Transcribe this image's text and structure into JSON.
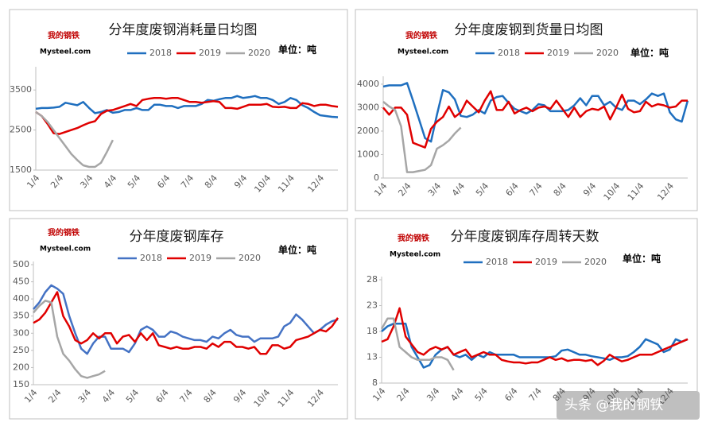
{
  "logo": {
    "cn": "我的钢铁",
    "en": "Mysteel.com"
  },
  "watermark": "头条 @我的钢铁",
  "chart_data": [
    {
      "type": "line",
      "title": "分年度废钢消耗量日均图",
      "unit": "单位：吨",
      "categories": [
        "1/4",
        null,
        null,
        null,
        "2/4",
        null,
        null,
        null,
        null,
        "3/4",
        null,
        null,
        null,
        "4/4",
        null,
        null,
        null,
        "5/4",
        null,
        null,
        null,
        null,
        "6/4",
        null,
        null,
        null,
        "7/4",
        null,
        null,
        null,
        "8/4",
        null,
        null,
        null,
        null,
        "9/4",
        null,
        null,
        null,
        "10/4",
        null,
        null,
        null,
        "11/4",
        null,
        null,
        null,
        null,
        "12/4",
        null,
        null,
        null
      ],
      "ylim": [
        1500,
        4000
      ],
      "yticks": [
        1500,
        2500,
        3500
      ],
      "series": [
        {
          "name": "2018",
          "color": "#1f6fbf",
          "values": [
            3030,
            3050,
            3050,
            3060,
            3080,
            3180,
            3150,
            3120,
            3200,
            3050,
            2920,
            2950,
            3000,
            2930,
            2950,
            3000,
            3000,
            3050,
            3000,
            3000,
            3130,
            3130,
            3100,
            3100,
            3050,
            3100,
            3100,
            3100,
            3150,
            3250,
            3230,
            3270,
            3300,
            3300,
            3350,
            3300,
            3320,
            3350,
            3300,
            3300,
            3250,
            3150,
            3200,
            3300,
            3250,
            3120,
            3050,
            2950,
            2870,
            2850,
            2830,
            2820
          ]
        },
        {
          "name": "2019",
          "color": "#e00000",
          "values": [
            2950,
            2850,
            2650,
            2420,
            2400,
            2450,
            2500,
            2550,
            2620,
            2680,
            2720,
            2900,
            2980,
            3000,
            3050,
            3100,
            3150,
            3100,
            3250,
            3280,
            3300,
            3300,
            3280,
            3300,
            3300,
            3250,
            3200,
            3200,
            3180,
            3200,
            3220,
            3200,
            3050,
            3050,
            3030,
            3080,
            3130,
            3130,
            3130,
            3150,
            3080,
            3070,
            3080,
            3050,
            3050,
            3170,
            3150,
            3100,
            3130,
            3130,
            3100,
            3080
          ]
        },
        {
          "name": "2020",
          "color": "#a6a6a6",
          "values": [
            2950,
            2850,
            2700,
            2500,
            2300,
            2100,
            1900,
            1750,
            1620,
            1580,
            1580,
            1680,
            1950,
            2250,
            null,
            null,
            null,
            null,
            null,
            null,
            null,
            null,
            null,
            null,
            null,
            null,
            null,
            null,
            null,
            null,
            null,
            null,
            null,
            null,
            null,
            null,
            null,
            null,
            null,
            null,
            null,
            null,
            null,
            null,
            null,
            null,
            null,
            null,
            null,
            null,
            null,
            null
          ]
        }
      ]
    },
    {
      "type": "line",
      "title": "分年度废钢到货量日均图",
      "unit": "单位：吨",
      "categories": [
        "1/4",
        null,
        null,
        null,
        "2/4",
        null,
        null,
        null,
        null,
        "3/4",
        null,
        null,
        null,
        "4/4",
        null,
        null,
        null,
        "5/4",
        null,
        null,
        null,
        null,
        "6/4",
        null,
        null,
        null,
        "7/4",
        null,
        null,
        null,
        "8/4",
        null,
        null,
        null,
        null,
        "9/4",
        null,
        null,
        null,
        "10/4",
        null,
        null,
        null,
        "11/4",
        null,
        null,
        null,
        null,
        "12/4",
        null,
        null,
        null
      ],
      "ylim": [
        0,
        4200
      ],
      "yticks": [
        0,
        1000,
        2000,
        3000,
        4000
      ],
      "series": [
        {
          "name": "2018",
          "color": "#1f6fbf",
          "values": [
            3900,
            3950,
            3950,
            3950,
            4050,
            3300,
            2500,
            1700,
            1550,
            2700,
            3750,
            3650,
            3350,
            2650,
            2600,
            2700,
            2900,
            2750,
            3300,
            3450,
            3500,
            3200,
            2950,
            2850,
            2750,
            2900,
            3150,
            3100,
            2850,
            2850,
            2850,
            2900,
            3100,
            3400,
            3100,
            3500,
            3500,
            3100,
            3250,
            3000,
            2900,
            3300,
            3300,
            3150,
            3350,
            3600,
            3500,
            3600,
            2800,
            2500,
            2400,
            3300
          ]
        },
        {
          "name": "2019",
          "color": "#e00000",
          "values": [
            3000,
            2700,
            3000,
            3000,
            2700,
            1500,
            1400,
            1300,
            2100,
            2400,
            2600,
            3050,
            2600,
            2800,
            3300,
            3050,
            2800,
            3300,
            3700,
            2900,
            2900,
            3250,
            2750,
            2900,
            3000,
            2850,
            3000,
            3050,
            2950,
            3300,
            2950,
            2600,
            3000,
            2600,
            2850,
            2950,
            2900,
            3050,
            2500,
            3000,
            3550,
            2950,
            2800,
            2850,
            3250,
            3050,
            3150,
            3100,
            3000,
            3050,
            3300,
            3300
          ]
        },
        {
          "name": "2020",
          "color": "#a6a6a6",
          "values": [
            3250,
            3050,
            2900,
            2200,
            250,
            250,
            300,
            350,
            550,
            1250,
            1400,
            1600,
            1900,
            2150,
            null,
            null,
            null,
            null,
            null,
            null,
            null,
            null,
            null,
            null,
            null,
            null,
            null,
            null,
            null,
            null,
            null,
            null,
            null,
            null,
            null,
            null,
            null,
            null,
            null,
            null,
            null,
            null,
            null,
            null,
            null,
            null,
            null,
            null,
            null,
            null,
            null,
            null
          ]
        }
      ]
    },
    {
      "type": "line",
      "title": "分年度废钢库存",
      "unit": "单位：吨",
      "categories": [
        "1/4",
        null,
        null,
        null,
        "2/4",
        null,
        null,
        null,
        null,
        "3/4",
        null,
        null,
        null,
        "4/4",
        null,
        null,
        null,
        "5/4",
        null,
        null,
        null,
        null,
        "6/4",
        null,
        null,
        null,
        "7/4",
        null,
        null,
        null,
        "8/4",
        null,
        null,
        null,
        null,
        "9/4",
        null,
        null,
        null,
        "10/4",
        null,
        null,
        null,
        "11/4",
        null,
        null,
        null,
        null,
        "12/4",
        null,
        null,
        null
      ],
      "ylim": [
        150,
        500
      ],
      "yticks": [
        150,
        200,
        250,
        300,
        350,
        400,
        450,
        500
      ],
      "series": [
        {
          "name": "2018",
          "color": "#4472c4",
          "values": [
            370,
            390,
            420,
            440,
            430,
            415,
            350,
            300,
            255,
            240,
            270,
            290,
            290,
            255,
            255,
            255,
            245,
            270,
            310,
            320,
            310,
            290,
            290,
            305,
            300,
            290,
            285,
            280,
            280,
            275,
            290,
            285,
            300,
            310,
            295,
            290,
            290,
            275,
            285,
            285,
            285,
            290,
            320,
            330,
            355,
            340,
            320,
            300,
            310,
            325,
            335,
            340
          ]
        },
        {
          "name": "2019",
          "color": "#e00000",
          "values": [
            330,
            340,
            360,
            390,
            420,
            350,
            320,
            280,
            270,
            280,
            300,
            285,
            300,
            300,
            270,
            290,
            295,
            275,
            300,
            280,
            300,
            265,
            260,
            255,
            260,
            255,
            255,
            260,
            260,
            255,
            270,
            260,
            275,
            275,
            260,
            260,
            255,
            260,
            240,
            240,
            265,
            265,
            255,
            260,
            280,
            285,
            290,
            300,
            310,
            305,
            320,
            345
          ]
        },
        {
          "name": "2020",
          "color": "#a6a6a6",
          "values": [
            360,
            380,
            395,
            390,
            290,
            240,
            220,
            195,
            175,
            170,
            175,
            180,
            190,
            null,
            null,
            null,
            null,
            null,
            null,
            null,
            null,
            null,
            null,
            null,
            null,
            null,
            null,
            null,
            null,
            null,
            null,
            null,
            null,
            null,
            null,
            null,
            null,
            null,
            null,
            null,
            null,
            null,
            null,
            null,
            null,
            null,
            null,
            null,
            null,
            null,
            null,
            null
          ]
        }
      ]
    },
    {
      "type": "line",
      "title": "分年度废钢库存周转天数",
      "unit": "单位：吨",
      "categories": [
        "1/4",
        null,
        null,
        null,
        "2/4",
        null,
        null,
        null,
        null,
        "3/4",
        null,
        null,
        null,
        "4/4",
        null,
        null,
        null,
        "5/4",
        null,
        null,
        null,
        null,
        "6/4",
        null,
        null,
        null,
        "7/4",
        null,
        null,
        null,
        "8/4",
        null,
        null,
        null,
        null,
        "9/4",
        null,
        null,
        null,
        "10/4",
        null,
        null,
        null,
        "11/4",
        null,
        null,
        null,
        null,
        "12/4",
        null,
        null,
        null
      ],
      "ylim": [
        8,
        28
      ],
      "yticks": [
        8,
        13,
        18,
        23,
        28
      ],
      "series": [
        {
          "name": "2018",
          "color": "#1f6fbf",
          "values": [
            18,
            19,
            19.5,
            19.5,
            19.5,
            15,
            13,
            11,
            11.5,
            13.5,
            14.5,
            15,
            13.5,
            13,
            13.5,
            12.5,
            13.5,
            13,
            14,
            13.5,
            13.5,
            13.5,
            13.5,
            13,
            13,
            13,
            13,
            13,
            13,
            13.2,
            14.3,
            14.5,
            14,
            13.5,
            13.5,
            13.2,
            13,
            12.8,
            12.5,
            13,
            13,
            13.2,
            14,
            15,
            16.5,
            16,
            15.5,
            14,
            14.5,
            16.5,
            16,
            16.5
          ]
        },
        {
          "name": "2019",
          "color": "#e00000",
          "values": [
            16,
            16.5,
            19,
            22.5,
            17,
            15.5,
            14,
            13.5,
            14.5,
            15,
            14.5,
            15,
            13.5,
            14,
            14.5,
            13,
            13.5,
            14,
            13.5,
            13.5,
            12.5,
            12.2,
            12,
            12,
            11.8,
            12,
            12,
            12.5,
            13,
            12.5,
            12.8,
            12.3,
            12.5,
            12.5,
            12.3,
            12.5,
            11.5,
            12.3,
            13.5,
            12.8,
            12.2,
            12.5,
            13,
            13.5,
            13.5,
            13.5,
            14,
            14.5,
            15,
            15.5,
            16,
            16.5
          ]
        },
        {
          "name": "2020",
          "color": "#a6a6a6",
          "values": [
            18.5,
            20.5,
            20.5,
            15,
            14,
            13,
            12.5,
            12.5,
            12.5,
            13,
            13,
            12.5,
            10.5,
            null,
            null,
            null,
            null,
            null,
            null,
            null,
            null,
            null,
            null,
            null,
            null,
            null,
            null,
            null,
            null,
            null,
            null,
            null,
            null,
            null,
            null,
            null,
            null,
            null,
            null,
            null,
            null,
            null,
            null,
            null,
            null,
            null,
            null,
            null,
            null,
            null,
            null,
            null
          ]
        }
      ]
    }
  ]
}
